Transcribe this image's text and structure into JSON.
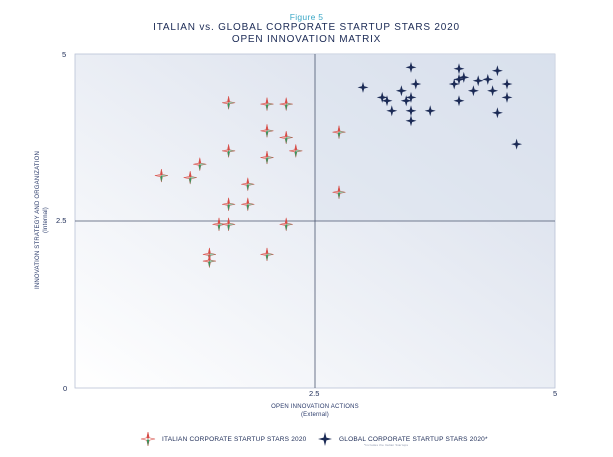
{
  "figure_label": "Figure 5",
  "title_line1": "ITALIAN vs. GLOBAL CORPORATE STARTUP STARS 2020",
  "title_line2": "OPEN INNOVATION MATRIX",
  "chart_data": {
    "type": "scatter",
    "title": "ITALIAN vs. GLOBAL CORPORATE STARTUP STARS 2020 — OPEN INNOVATION MATRIX",
    "xlabel": "OPEN INNOVATION ACTIONS",
    "xlabel_sub": "(External)",
    "ylabel": "INNOVATION STRATEGY AND ORGANIZATION",
    "ylabel_sub": "(Internal)",
    "xlim": [
      0,
      5
    ],
    "ylim": [
      0,
      5
    ],
    "x_ticks": [
      "0",
      "2.5",
      "5"
    ],
    "y_ticks": [
      "2.5",
      "5"
    ],
    "origin_label": "0",
    "grid": false,
    "quadrant_lines": [
      2.5,
      2.5
    ],
    "legend_position": "bottom-center",
    "colors": {
      "italian_red": "#d64b45",
      "italian_green": "#2f9a5f",
      "global": "#1b2a55",
      "quadrant": "#dde3ee"
    },
    "series": [
      {
        "name": "ITALIAN CORPORATE STARTUP STARS 2020",
        "points": [
          [
            1.6,
            4.27
          ],
          [
            2.0,
            4.25
          ],
          [
            2.2,
            4.25
          ],
          [
            2.0,
            3.85
          ],
          [
            2.2,
            3.75
          ],
          [
            2.75,
            3.83
          ],
          [
            1.6,
            3.55
          ],
          [
            2.0,
            3.45
          ],
          [
            2.3,
            3.55
          ],
          [
            1.3,
            3.35
          ],
          [
            0.9,
            3.18
          ],
          [
            1.2,
            3.15
          ],
          [
            1.8,
            3.05
          ],
          [
            2.75,
            2.93
          ],
          [
            1.6,
            2.75
          ],
          [
            1.8,
            2.75
          ],
          [
            1.5,
            2.45
          ],
          [
            1.6,
            2.45
          ],
          [
            2.2,
            2.45
          ],
          [
            1.4,
            2.0
          ],
          [
            2.0,
            2.0
          ],
          [
            1.4,
            1.9
          ]
        ]
      },
      {
        "name": "GLOBAL CORPORATE STARTUP STARS 2020*",
        "points": [
          [
            3.0,
            4.5
          ],
          [
            3.2,
            4.35
          ],
          [
            3.25,
            4.3
          ],
          [
            3.3,
            4.15
          ],
          [
            3.4,
            4.45
          ],
          [
            3.45,
            4.3
          ],
          [
            3.5,
            4.8
          ],
          [
            3.5,
            4.35
          ],
          [
            3.5,
            4.15
          ],
          [
            3.5,
            4.0
          ],
          [
            3.55,
            4.55
          ],
          [
            3.7,
            4.15
          ],
          [
            4.0,
            4.78
          ],
          [
            3.95,
            4.55
          ],
          [
            4.0,
            4.62
          ],
          [
            4.05,
            4.65
          ],
          [
            4.0,
            4.3
          ],
          [
            4.15,
            4.45
          ],
          [
            4.2,
            4.6
          ],
          [
            4.3,
            4.62
          ],
          [
            4.35,
            4.45
          ],
          [
            4.4,
            4.75
          ],
          [
            4.4,
            4.12
          ],
          [
            4.5,
            4.55
          ],
          [
            4.5,
            4.35
          ],
          [
            4.6,
            3.65
          ]
        ]
      }
    ]
  },
  "legend": {
    "italian_label": "ITALIAN CORPORATE STARTUP STARS 2020",
    "global_label": "GLOBAL CORPORATE STARTUP STARS 2020*",
    "global_note": "*Includes the Italian Startups"
  }
}
